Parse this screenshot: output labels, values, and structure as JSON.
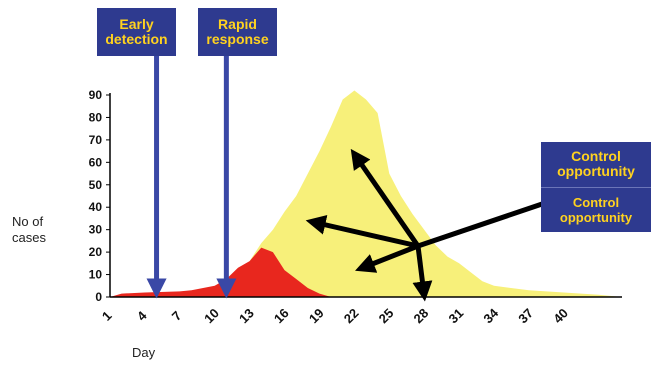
{
  "chart_data": {
    "type": "area",
    "title": "",
    "xlabel": "Day",
    "ylabel": "No of cases",
    "xlim": [
      1,
      45
    ],
    "ylim": [
      0,
      90
    ],
    "x_ticks": [
      1,
      4,
      7,
      10,
      13,
      16,
      19,
      22,
      25,
      28,
      31,
      34,
      37,
      40
    ],
    "y_ticks": [
      0,
      10,
      20,
      30,
      40,
      50,
      60,
      70,
      80,
      90
    ],
    "series": [
      {
        "color": "#f7f07a",
        "points": [
          [
            1,
            0
          ],
          [
            4,
            1
          ],
          [
            7,
            2
          ],
          [
            10,
            3
          ],
          [
            11,
            6
          ],
          [
            12,
            10
          ],
          [
            13,
            16
          ],
          [
            14,
            24
          ],
          [
            15,
            30
          ],
          [
            16,
            38
          ],
          [
            17,
            45
          ],
          [
            18,
            55
          ],
          [
            19,
            65
          ],
          [
            20,
            76
          ],
          [
            21,
            88
          ],
          [
            22,
            92
          ],
          [
            23,
            88
          ],
          [
            24,
            82
          ],
          [
            25,
            55
          ],
          [
            26,
            45
          ],
          [
            27,
            37
          ],
          [
            28,
            30
          ],
          [
            29,
            23
          ],
          [
            30,
            18
          ],
          [
            31,
            15
          ],
          [
            32,
            11
          ],
          [
            33,
            7
          ],
          [
            34,
            5
          ],
          [
            37,
            3
          ],
          [
            40,
            2
          ],
          [
            43,
            1
          ],
          [
            45,
            0
          ]
        ]
      },
      {
        "color": "#e8271e",
        "points": [
          [
            1,
            0
          ],
          [
            2,
            1.5
          ],
          [
            4,
            2
          ],
          [
            7,
            2.5
          ],
          [
            8,
            3
          ],
          [
            9,
            4
          ],
          [
            10,
            5
          ],
          [
            11,
            8
          ],
          [
            12,
            13
          ],
          [
            13,
            16
          ],
          [
            14,
            22
          ],
          [
            15,
            20
          ],
          [
            16,
            12
          ],
          [
            17,
            8
          ],
          [
            18,
            4
          ],
          [
            19,
            1.5
          ],
          [
            20,
            0
          ]
        ]
      }
    ],
    "annotations": {
      "early_detection": {
        "label": "Early\ndetection",
        "day": 5
      },
      "rapid_response": {
        "label": "Rapid\nresponse",
        "day": 11
      },
      "control_opportunity_1": "Control\nopportunity",
      "control_opportunity_2": "Control\nopportunity"
    },
    "colors": {
      "callout_bg": "#2e3a8f",
      "callout_text": "#ffd21f",
      "marker_arrow": "#3a48a6",
      "control_arrows": "#000000"
    }
  },
  "labels": {
    "ylabel_line1": "No of",
    "ylabel_line2": "cases",
    "xlabel": "Day",
    "early_l1": "Early",
    "early_l2": "detection",
    "rapid_l1": "Rapid",
    "rapid_l2": "response",
    "co1_l1": "Control",
    "co1_l2": "opportunity",
    "co2_l1": "Control",
    "co2_l2": "opportunity"
  }
}
